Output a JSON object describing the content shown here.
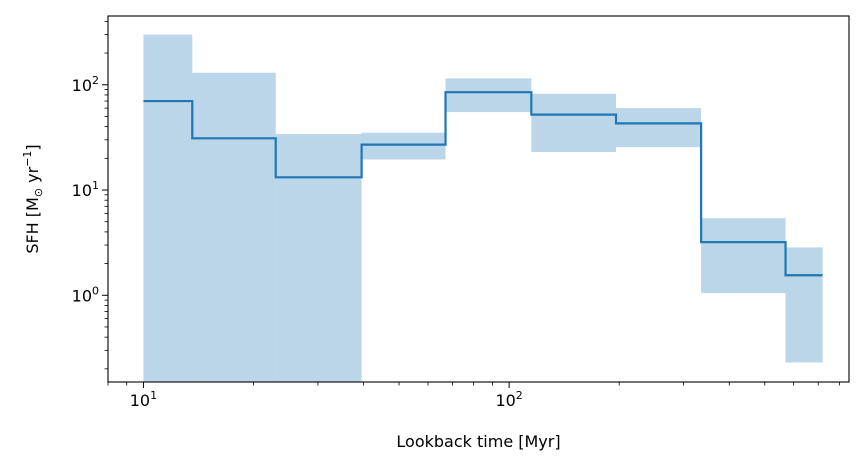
{
  "chart_data": {
    "type": "step",
    "title": "",
    "xlabel": "Lookback time [Myr]",
    "ylabel": {
      "base": "SFH [M",
      "sub": "⊙",
      "mid": " yr",
      "sup": "−1",
      "end": "]"
    },
    "xscale": "log",
    "yscale": "log",
    "xlim": [
      8.0,
      850
    ],
    "ylim": [
      0.15,
      450
    ],
    "grid": false,
    "legend": "none",
    "x_ticks": [
      {
        "value": 10,
        "base": "10",
        "exp": "1"
      },
      {
        "value": 100,
        "base": "10",
        "exp": "2"
      }
    ],
    "y_ticks": [
      {
        "value": 1,
        "base": "10",
        "exp": "0"
      },
      {
        "value": 10,
        "base": "10",
        "exp": "1"
      },
      {
        "value": 100,
        "base": "10",
        "exp": "2"
      }
    ],
    "bins": [
      {
        "x0": 10,
        "x1": 13.6,
        "y": 70,
        "lo": 0.15,
        "hi": 300
      },
      {
        "x0": 13.6,
        "x1": 23,
        "y": 31,
        "lo": 0.15,
        "hi": 130
      },
      {
        "x0": 23,
        "x1": 39.5,
        "y": 13.2,
        "lo": 0.15,
        "hi": 34
      },
      {
        "x0": 39.5,
        "x1": 67,
        "y": 27,
        "lo": 19.5,
        "hi": 35
      },
      {
        "x0": 67,
        "x1": 115,
        "y": 85,
        "lo": 55,
        "hi": 115
      },
      {
        "x0": 115,
        "x1": 196,
        "y": 52,
        "lo": 23,
        "hi": 82
      },
      {
        "x0": 196,
        "x1": 335,
        "y": 43,
        "lo": 25.5,
        "hi": 60
      },
      {
        "x0": 335,
        "x1": 570,
        "y": 3.2,
        "lo": 1.05,
        "hi": 5.4
      },
      {
        "x0": 570,
        "x1": 720,
        "y": 1.55,
        "lo": 0.23,
        "hi": 2.85
      }
    ],
    "colors": {
      "line": "#1f77b4",
      "band": "#1f77b4",
      "band_opacity": 0.3
    }
  }
}
